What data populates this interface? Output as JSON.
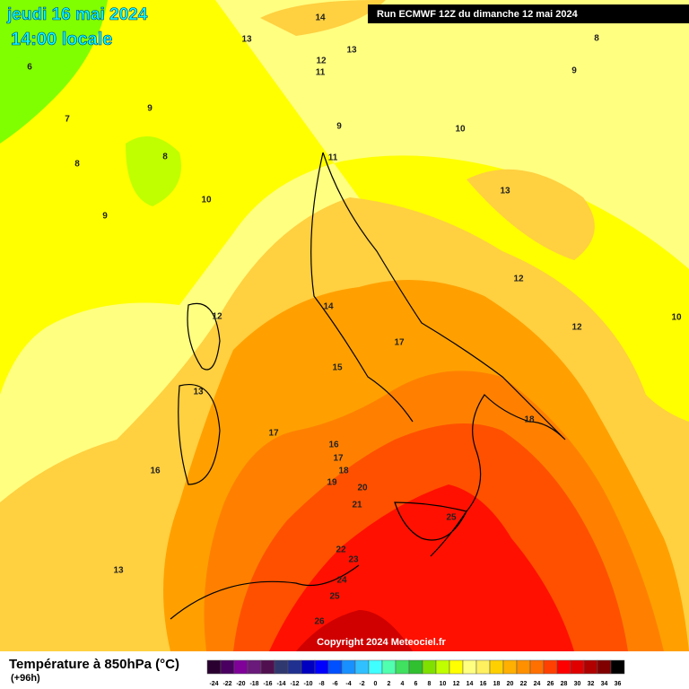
{
  "header": {
    "date": "jeudi 16 mai 2024",
    "time": "14:00 locale",
    "run": "Run ECMWF 12Z du dimanche 12 mai 2024"
  },
  "contour_labels": [
    14,
    13,
    13,
    8,
    6,
    12,
    11,
    9,
    7,
    9,
    9,
    10,
    8,
    8,
    11,
    13,
    10,
    9,
    12,
    14,
    12,
    10,
    17,
    12,
    15,
    13,
    18,
    17,
    16,
    17,
    16,
    18,
    19,
    20,
    21,
    25,
    13,
    22,
    23,
    24,
    25,
    26
  ],
  "copyright": "Copyright 2024 Meteociel.fr",
  "legend": {
    "title": "Température à 850hPa (°C)",
    "lead": "(+96h)",
    "ticks": [
      -24,
      -22,
      -20,
      -18,
      -16,
      -14,
      -12,
      -10,
      -8,
      -6,
      -4,
      -2,
      0,
      2,
      4,
      6,
      8,
      10,
      12,
      14,
      16,
      18,
      20,
      22,
      24,
      26,
      28,
      30,
      32,
      34,
      36
    ],
    "colors": [
      "#2a0030",
      "#4a0060",
      "#80009a",
      "#6a1a7a",
      "#501050",
      "#303870",
      "#203090",
      "#0000c0",
      "#0000ff",
      "#0050ff",
      "#1890ff",
      "#30c0ff",
      "#40ffff",
      "#50ffb0",
      "#40e060",
      "#30c030",
      "#80e000",
      "#c0ff00",
      "#ffff00",
      "#ffff80",
      "#fff060",
      "#ffd000",
      "#ffb000",
      "#ff9000",
      "#ff7000",
      "#ff4000",
      "#ff0000",
      "#e00000",
      "#b00000",
      "#800000",
      "#000000"
    ]
  }
}
